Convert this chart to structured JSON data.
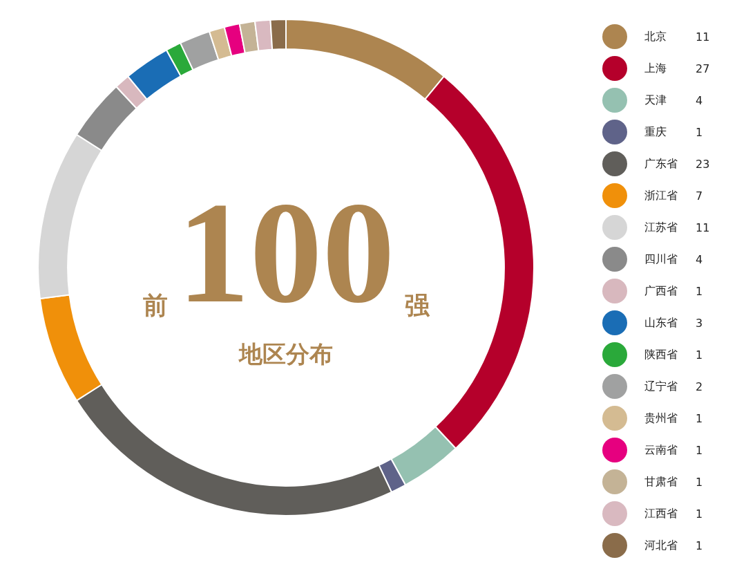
{
  "chart_data": {
    "type": "donut",
    "title": "前100强",
    "subtitle": "地区分布",
    "categories": [
      "北京",
      "上海",
      "天津",
      "重庆",
      "广东省",
      "浙江省",
      "江苏省",
      "四川省",
      "广西省",
      "山东省",
      "陕西省",
      "辽宁省",
      "贵州省",
      "云南省",
      "甘肃省",
      "江西省",
      "河北省"
    ],
    "values": [
      11,
      27,
      4,
      1,
      23,
      7,
      11,
      4,
      1,
      3,
      1,
      2,
      1,
      1,
      1,
      1,
      1
    ],
    "colors": [
      "#ad8550",
      "#b5002b",
      "#95c1b1",
      "#5f6389",
      "#605e5a",
      "#f0900a",
      "#d6d6d6",
      "#8a8a8a",
      "#d8b8be",
      "#1a6db5",
      "#2aa93a",
      "#a0a1a1",
      "#d4bb92",
      "#e6007f",
      "#c4b396",
      "#d9b9c0",
      "#8a6c4a"
    ],
    "legend": "right",
    "data_labels": true
  }
}
